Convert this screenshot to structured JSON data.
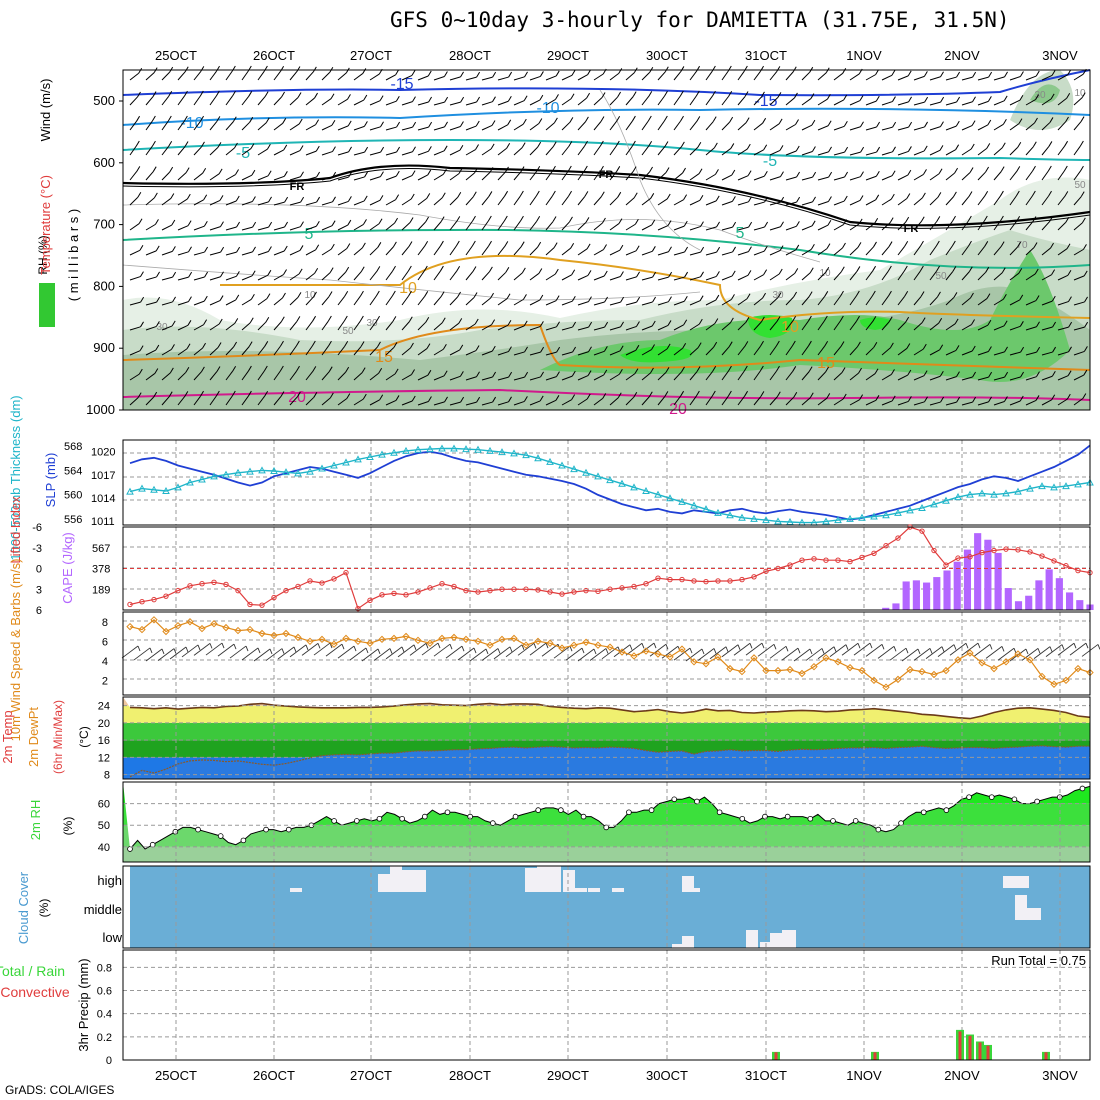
{
  "title": "GFS 0~10day 3-hourly for DAMIETTA (31.75E, 31.5N)",
  "credit": "GrADS: COLA/IGES",
  "dates": [
    "25OCT",
    "26OCT",
    "27OCT",
    "28OCT",
    "29OCT",
    "30OCT",
    "31OCT",
    "1NOV",
    "2NOV",
    "3NOV"
  ],
  "colors": {
    "blue": "#1f3fd4",
    "cyan": "#1fb5c9",
    "red": "#e03c3c",
    "orange": "#e08a1a",
    "purple": "#b366ff",
    "green": "#39d63a",
    "magenta": "#d01a8c",
    "cloud": "#6aaed6",
    "cloud_block": "#f2f0f5",
    "rh_green": "#32e032"
  },
  "chart_data": [
    {
      "type": "heatmap",
      "name": "upper-air",
      "ylabel_parts": [
        "RH (%)",
        "Temperature (°C)",
        "Wind (m/s)"
      ],
      "ylabel_axis": "( m i l l i b a r s )",
      "yticks": [
        "500",
        "600",
        "700",
        "800",
        "900",
        "1000"
      ],
      "contour_labels": [
        "-15",
        "-15",
        "-10",
        "-10",
        "-5",
        "-5",
        "FR",
        "FR",
        "FR",
        "5",
        "5",
        "10",
        "10",
        "15",
        "15",
        "20",
        "20"
      ],
      "rh_labels": [
        "30",
        "50",
        "30",
        "10",
        "30",
        "10",
        "50",
        "70",
        "50",
        "10",
        "30"
      ],
      "temperature_isotherms_c": [
        -15,
        -10,
        -5,
        0,
        5,
        10,
        15,
        20
      ]
    },
    {
      "type": "line",
      "name": "thickness-slp",
      "ylabel_left": "1000-500mb Thickness (dm)",
      "ylabel_right": "SLP (mb)",
      "thickness_ticks": [
        "568",
        "564",
        "560",
        "556"
      ],
      "slp_ticks": [
        "1020",
        "1017",
        "1014",
        "1011"
      ],
      "series": [
        {
          "name": "SLP",
          "values": [
            1018.5,
            1019,
            1019.2,
            1018.8,
            1018.2,
            1017.8,
            1017.4,
            1017,
            1016.5,
            1016,
            1015.6,
            1016,
            1016.8,
            1017.2,
            1017.6,
            1018,
            1017.8,
            1017.4,
            1017,
            1016.6,
            1017.2,
            1018,
            1018.8,
            1019.4,
            1019.8,
            1020,
            1019.7,
            1019.2,
            1018.8,
            1018.6,
            1018.2,
            1017.8,
            1017.4,
            1017,
            1016.8,
            1016.5,
            1016.2,
            1015.8,
            1015.2,
            1014.4,
            1013.8,
            1013.2,
            1012.8,
            1012.4,
            1012.6,
            1012.2,
            1012,
            1012.4,
            1012.2,
            1012,
            1012.4,
            1012.6,
            1012.2,
            1012,
            1012.3,
            1012.5,
            1012.2,
            1012,
            1011.8,
            1011.5,
            1011.2,
            1011.4,
            1011.8,
            1012.2,
            1012.6,
            1013,
            1013.6,
            1014.2,
            1014.8,
            1015.4,
            1015.8,
            1016.4,
            1016.8,
            1016.6,
            1016.2,
            1016.8,
            1017.4,
            1018,
            1018.8,
            1019.6,
            1020.8
          ]
        },
        {
          "name": "Thickness",
          "values": [
            560.5,
            561,
            560.8,
            560.6,
            561.2,
            562,
            562.5,
            563,
            563.3,
            563.6,
            563.8,
            564,
            563.9,
            563.7,
            563.5,
            563.8,
            564.3,
            564.8,
            565.3,
            565.8,
            566.2,
            566.6,
            566.9,
            567.2,
            567.4,
            567.5,
            567.6,
            567.6,
            567.5,
            567.4,
            567.2,
            567,
            566.8,
            566.5,
            566,
            565.4,
            564.8,
            564.2,
            563.6,
            563,
            562.4,
            561.8,
            561.2,
            560.6,
            560,
            559.4,
            558.8,
            558.2,
            557.6,
            557,
            556.6,
            556.2,
            556,
            555.8,
            555.6,
            555.5,
            555.4,
            555.4,
            555.6,
            555.8,
            556,
            556.2,
            556.4,
            556.6,
            557,
            557.4,
            557.8,
            558.4,
            559,
            559.6,
            560,
            560.2,
            560,
            560.2,
            560.5,
            561,
            561.4,
            561.2,
            561.4,
            561.7,
            562
          ]
        }
      ],
      "thickness_range": [
        555,
        569
      ],
      "slp_range": [
        1010.5,
        1021.5
      ]
    },
    {
      "type": "bar",
      "name": "cape-lifted-index",
      "ylabel_left": "Lifted Index",
      "ylabel_right": "CAPE (J/kg)",
      "li_ticks": [
        "-6",
        "-3",
        "0",
        "3",
        "6"
      ],
      "cape_ticks": [
        "567",
        "378",
        "189"
      ],
      "series": [
        {
          "name": "Lifted Index",
          "values": [
            5.2,
            4.8,
            4.5,
            4,
            3.2,
            2.5,
            2.2,
            2,
            2.3,
            3.2,
            5.2,
            5.3,
            4.2,
            3.2,
            2.6,
            1.8,
            2.1,
            1.5,
            0.6,
            5.8,
            4.6,
            3.8,
            3.6,
            3.8,
            3.4,
            2.8,
            2.2,
            2.6,
            3.2,
            3.4,
            3.2,
            3,
            3,
            3,
            3.1,
            3.4,
            3.7,
            3.4,
            3.2,
            3.3,
            3,
            2.8,
            2.6,
            2.2,
            1.4,
            1.6,
            1.6,
            1.8,
            1.9,
            1.8,
            1.8,
            1.6,
            1.2,
            0.4,
            0,
            -0.5,
            -1.2,
            -1.4,
            -1.2,
            -1.2,
            -1,
            -1.6,
            -2.2,
            -3.3,
            -4.4,
            -6,
            -5.4,
            -2.6,
            -0.5,
            -1.5,
            -1.7,
            -2.3,
            -2.6,
            -2.8,
            -2.7,
            -2.4,
            -1.8,
            -1.1,
            -0.4,
            0.3,
            0.6
          ]
        },
        {
          "name": "CAPE",
          "values": [
            0,
            0,
            0,
            0,
            0,
            0,
            0,
            0,
            0,
            0,
            0,
            0,
            0,
            0,
            0,
            0,
            0,
            0,
            0,
            0,
            0,
            0,
            0,
            0,
            0,
            0,
            0,
            0,
            0,
            0,
            0,
            0,
            0,
            0,
            0,
            0,
            0,
            0,
            0,
            0,
            0,
            0,
            0,
            0,
            0,
            0,
            0,
            0,
            0,
            0,
            0,
            0,
            0,
            0,
            0,
            0,
            0,
            0,
            0,
            0,
            0,
            0,
            0,
            0,
            0,
            0,
            0,
            0,
            0,
            0,
            0,
            0,
            0,
            0,
            20,
            60,
            260,
            270,
            250,
            300,
            360,
            440,
            550,
            700,
            640,
            520,
            200,
            80,
            130,
            270,
            370,
            290,
            160,
            90,
            50
          ]
        }
      ],
      "li_range": [
        6,
        -6
      ],
      "cape_range": [
        0,
        756
      ]
    },
    {
      "type": "line",
      "name": "wind-10m",
      "ylabel": "10m Wind Speed & Barbs (m/s)",
      "yticks": [
        "8",
        "6",
        "4",
        "2"
      ],
      "series": [
        {
          "name": "Speed",
          "values": [
            7.5,
            7.2,
            8.2,
            7,
            7.6,
            8,
            7.3,
            7.8,
            7.4,
            7.1,
            7.2,
            6.8,
            6.6,
            6.8,
            6.4,
            6,
            6.2,
            5.7,
            6.3,
            6,
            5.8,
            6.2,
            6.3,
            6.5,
            6.1,
            5.8,
            6.3,
            6.4,
            6.2,
            6,
            5.6,
            6.2,
            6.3,
            5.6,
            6,
            5.8,
            5.3,
            5.6,
            5.9,
            5.6,
            5.4,
            4.9,
            4.5,
            5,
            4.7,
            4.4,
            5.2,
            3.9,
            3.7,
            4.4,
            3.2,
            2.9,
            4.3,
            3,
            3,
            3.1,
            2.7,
            3.4,
            4.3,
            3.9,
            3.3,
            3,
            2,
            1.3,
            2.1,
            3.1,
            2.9,
            2.6,
            3,
            4.1,
            4.8,
            3.8,
            3.2,
            3.9,
            4.7,
            4.1,
            2.4,
            1.6,
            2,
            3.2,
            2.8
          ]
        }
      ],
      "yrange": [
        0.5,
        9
      ]
    },
    {
      "type": "area",
      "name": "temp-dewpoint",
      "ylabel": "2m Temp 2m DewPt (6hr Min/Max) (°C)",
      "yticks": [
        "24",
        "20",
        "16",
        "12",
        "8"
      ],
      "series": [
        {
          "name": "2m Temp",
          "values": [
            23.6,
            23.5,
            23.3,
            23.5,
            23.2,
            23.4,
            23.6,
            23.5,
            23.8,
            23.9,
            24.3,
            24.5,
            24.1,
            23.9,
            23.7,
            23.6,
            23.5,
            23.5,
            23.5,
            23.6,
            23.6,
            23.7,
            23.9,
            24.2,
            24.4,
            24.5,
            24.2,
            24.1,
            24,
            24.3,
            24.5,
            24.2,
            24.4,
            24.4,
            24.3,
            23.8,
            23.6,
            23.4,
            23.3,
            23.5,
            23.4,
            23,
            22.6,
            22.8,
            23.1,
            22.6,
            22.3,
            22.6,
            23.2,
            22.8,
            22.9,
            22.4,
            22.3,
            22.5,
            22.6,
            22.8,
            22.9,
            22.8,
            22.6,
            22.7,
            23,
            23.1,
            23.3,
            23,
            22.7,
            22.4,
            22,
            21.8,
            21.5,
            21.2,
            21,
            21.6,
            22.4,
            23,
            23.4,
            23.5,
            23.2,
            22.9,
            22.4,
            21.6,
            21.3
          ]
        },
        {
          "name": "2m DewPt",
          "values": [
            7.5,
            9,
            8.4,
            9.3,
            10.5,
            11.2,
            11.4,
            11.3,
            11,
            11.2,
            10.8,
            10.4,
            10.2,
            10.6,
            11.2,
            11.9,
            12.4,
            12.6,
            12.7,
            12.6,
            12.8,
            13,
            13,
            13.3,
            13.5,
            13.5,
            13.6,
            13.8,
            13.8,
            14,
            14.1,
            14.3,
            14.4,
            14.2,
            14.4,
            14.5,
            14.4,
            14.2,
            14.3,
            14.2,
            14.4,
            14.3,
            14.1,
            13.6,
            13.2,
            13.4,
            13.5,
            12.8,
            13.4,
            13.5,
            13.8,
            13.5,
            13.6,
            13.6,
            13.4,
            13.7,
            13.9,
            13.8,
            13.9,
            14.1,
            14.2,
            14.2,
            14.3,
            14.1,
            14.3,
            14.4,
            14.6,
            14.3,
            14.1,
            14.2,
            14.3,
            14.3,
            14.1,
            14.3,
            14.4,
            14.6,
            14.7,
            14.5,
            14.4,
            14.6,
            14.6
          ]
        }
      ],
      "yrange": [
        7,
        26
      ]
    },
    {
      "type": "area",
      "name": "relative-humidity",
      "ylabel": "2m RH (%)",
      "yticks": [
        "60",
        "50",
        "40"
      ],
      "series": [
        {
          "name": "2m RH",
          "values": [
            39,
            43,
            39,
            41,
            43,
            45,
            47,
            49,
            49,
            48,
            47,
            46,
            45,
            42,
            41,
            43,
            46,
            47,
            48,
            48,
            47,
            48,
            49,
            49,
            50,
            52,
            54,
            52,
            50,
            51,
            52,
            53,
            52,
            53,
            56,
            55,
            53,
            51,
            52,
            54,
            57,
            55,
            56,
            56,
            55,
            54,
            54,
            52,
            51,
            50,
            52,
            54,
            55,
            56,
            57,
            58,
            58,
            57,
            55,
            57,
            54,
            54,
            52,
            49,
            49,
            52,
            56,
            56,
            57,
            57,
            60,
            61,
            62,
            62,
            63,
            61,
            63,
            60,
            56,
            55,
            54,
            53,
            51,
            52,
            54,
            54,
            53,
            54,
            54,
            54,
            53,
            55,
            52,
            52,
            51,
            50,
            52,
            51,
            50,
            48,
            47,
            48,
            51,
            54,
            56,
            56,
            57,
            58,
            57,
            59,
            62,
            63,
            65,
            64,
            63,
            64,
            63,
            62,
            60,
            60,
            61,
            62,
            63,
            63,
            64,
            66,
            67,
            68
          ]
        }
      ],
      "yrange": [
        33,
        70
      ]
    },
    {
      "type": "bar",
      "name": "cloud-cover",
      "ylabel": "Cloud Cover (%)",
      "levels": [
        "high",
        "middle",
        "low"
      ]
    },
    {
      "type": "bar",
      "name": "precipitation",
      "ylabel_left": "Total / Rain",
      "ylabel_left2": "Convective",
      "ylabel": "3hr Precip (mm)",
      "yticks": [
        "0.8",
        "0.6",
        "0.4",
        "0.2",
        "0"
      ],
      "run_total_label": "Run Total = 0.75",
      "yrange": [
        0,
        0.95
      ]
    }
  ]
}
